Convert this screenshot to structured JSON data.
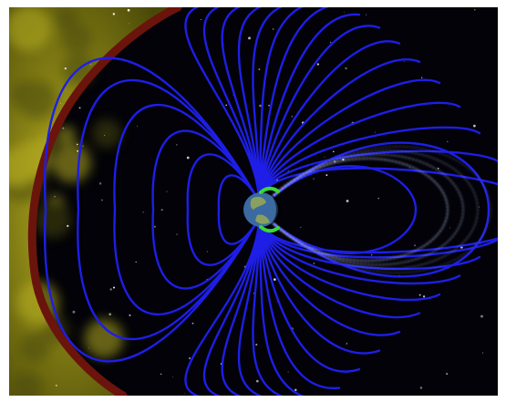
{
  "image": {
    "subject": "magnetosphere-illustration",
    "colors": {
      "frame": "#ffffff",
      "space": "#020208",
      "solar_wind": "#b8b020",
      "solar_wind_dark": "#4a4808",
      "bow_shock": "#6a140c",
      "field_lines": "#1e1ee6",
      "radiation_belt": "#c8d4ff",
      "earth_ocean": "#3a6aa0",
      "earth_land": "#8aa060",
      "aurora": "#38d838",
      "stars": "#ffffff"
    }
  }
}
